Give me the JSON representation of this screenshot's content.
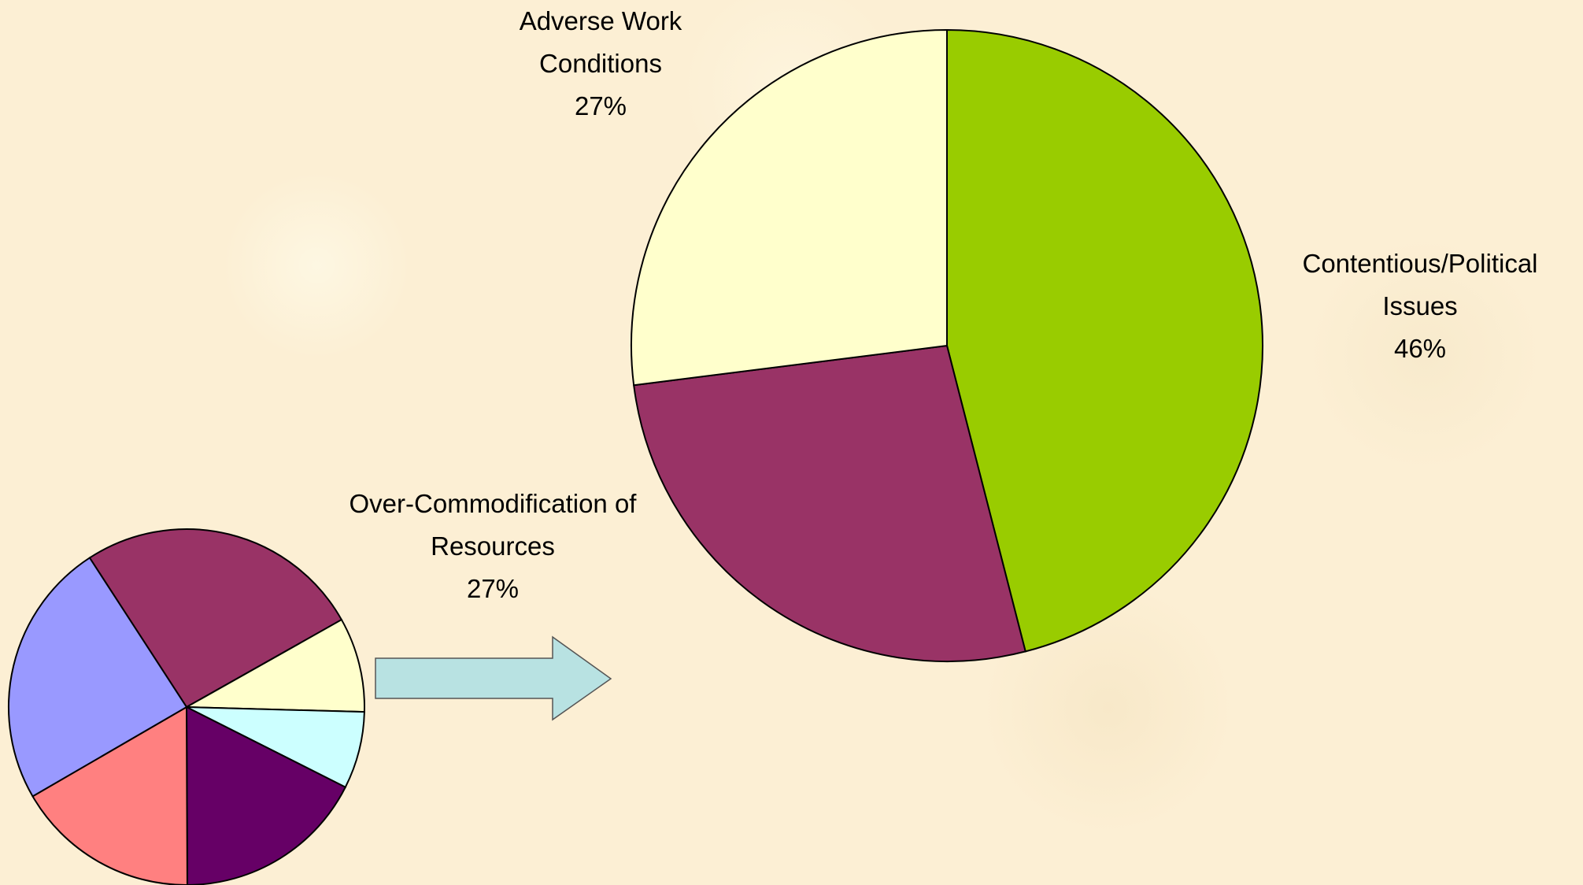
{
  "chart_data": [
    {
      "type": "pie",
      "categories": [
        "Contentious/Political Issues",
        "Over-Commodification of Resources",
        "Adverse Work Conditions"
      ],
      "values": [
        46,
        27,
        27
      ],
      "value_labels": [
        "46%",
        "27%",
        "27%"
      ],
      "colors": [
        "#99cc00",
        "#993366",
        "#ffffcc"
      ]
    },
    {
      "type": "pie",
      "categories": [
        null,
        null,
        null,
        null,
        null,
        null
      ],
      "values": [
        26,
        8.6,
        7,
        17.5,
        16.7,
        24.2
      ],
      "colors": [
        "#993366",
        "#ffffcc",
        "#ccffff",
        "#660066",
        "#ff8080",
        "#9999ff"
      ]
    }
  ]
}
